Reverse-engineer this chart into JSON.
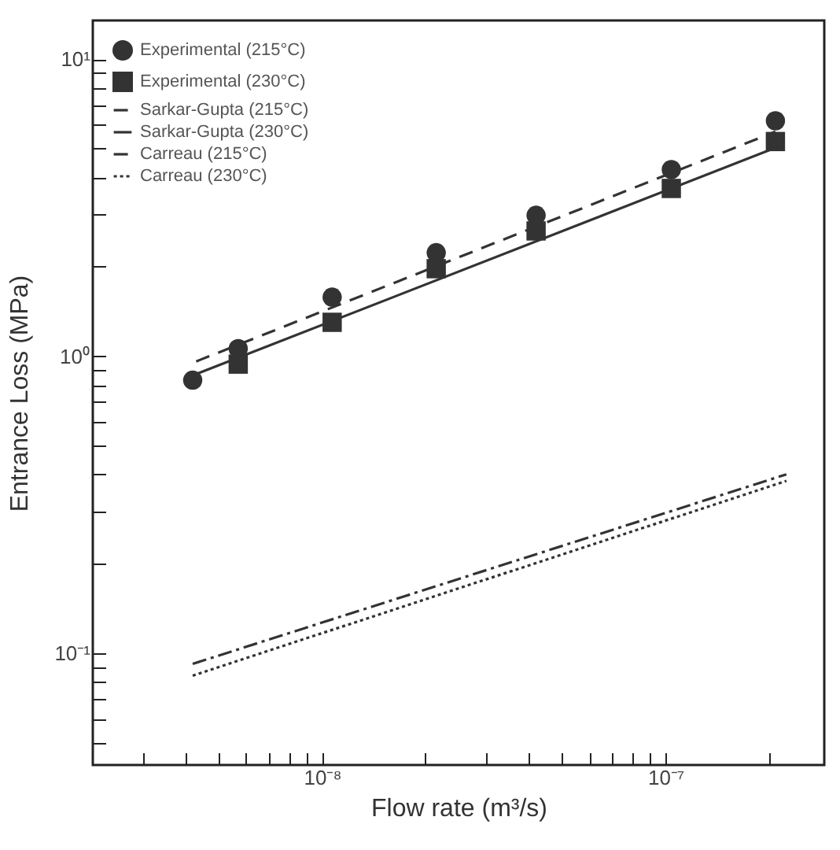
{
  "chart_data": {
    "type": "scatter",
    "xlabel": "Flow rate (m³/s)",
    "ylabel": "Entrance Loss (MPa)",
    "log": "xy",
    "grid": false,
    "legend": "top left",
    "xlim": [
      2.15e-09,
      2.9e-07
    ],
    "ylim": [
      0.042,
      13.5
    ],
    "xticks": [
      {
        "value": 3e-09,
        "label": null
      },
      {
        "value": 4e-09,
        "label": null
      },
      {
        "value": 5e-09,
        "label": null
      },
      {
        "value": 6e-09,
        "label": null
      },
      {
        "value": 7e-09,
        "label": null
      },
      {
        "value": 8e-09,
        "label": null
      },
      {
        "value": 9e-09,
        "label": null
      },
      {
        "value": 1e-08,
        "label": "10⁻⁸"
      },
      {
        "value": 2e-08,
        "label": null
      },
      {
        "value": 3e-08,
        "label": null
      },
      {
        "value": 4e-08,
        "label": null
      },
      {
        "value": 5e-08,
        "label": null
      },
      {
        "value": 6e-08,
        "label": null
      },
      {
        "value": 7e-08,
        "label": null
      },
      {
        "value": 8e-08,
        "label": null
      },
      {
        "value": 9e-08,
        "label": null
      },
      {
        "value": 1e-07,
        "label": "10⁻⁷"
      },
      {
        "value": 2e-07,
        "label": null
      }
    ],
    "yticks": [
      {
        "value": 0.05,
        "label": null
      },
      {
        "value": 0.06,
        "label": null
      },
      {
        "value": 0.07,
        "label": null
      },
      {
        "value": 0.08,
        "label": null
      },
      {
        "value": 0.09,
        "label": null
      },
      {
        "value": 0.1,
        "label": "10⁻¹"
      },
      {
        "value": 0.2,
        "label": null
      },
      {
        "value": 0.3,
        "label": null
      },
      {
        "value": 0.4,
        "label": null
      },
      {
        "value": 0.5,
        "label": null
      },
      {
        "value": 0.6,
        "label": null
      },
      {
        "value": 0.7,
        "label": null
      },
      {
        "value": 0.8,
        "label": null
      },
      {
        "value": 0.9,
        "label": null
      },
      {
        "value": 1,
        "label": "10⁰"
      },
      {
        "value": 2,
        "label": null
      },
      {
        "value": 3,
        "label": null
      },
      {
        "value": 4,
        "label": null
      },
      {
        "value": 5,
        "label": null
      },
      {
        "value": 6,
        "label": null
      },
      {
        "value": 7,
        "label": null
      },
      {
        "value": 8,
        "label": null
      },
      {
        "value": 9,
        "label": null
      },
      {
        "value": 10,
        "label": "10¹"
      }
    ],
    "x": [
      4.2e-09,
      5.7e-09,
      1.07e-08,
      2.15e-08,
      4.2e-08,
      1.04e-07,
      2.09e-07
    ],
    "series": [
      {
        "name": "Experimental (215°C)",
        "color": "#333333",
        "marker": "circle",
        "values": [
          0.83,
          1.06,
          1.58,
          2.23,
          2.98,
          4.25,
          6.2
        ]
      },
      {
        "name": "Experimental (230°C)",
        "color": "#333333",
        "marker": "square",
        "values": [
          null,
          0.94,
          1.3,
          1.97,
          2.64,
          3.67,
          5.28
        ]
      },
      {
        "name": "Sarkar-Gupta (215°C)",
        "color": "#333333",
        "type": "line",
        "line_style": "dashed",
        "x": [
          4.3e-09,
          2.09e-07
        ],
        "values": [
          0.96,
          5.7
        ]
      },
      {
        "name": "Sarkar-Gupta (230°C)",
        "color": "#333333",
        "type": "line",
        "line_style": "solid",
        "x": [
          4.3e-09,
          2.09e-07
        ],
        "values": [
          0.87,
          5.03
        ]
      },
      {
        "name": "Carreau (215°C)",
        "color": "#333333",
        "type": "line",
        "line_style": "dashdot",
        "x": [
          4.2e-09,
          2.25e-07
        ],
        "values": [
          0.092,
          0.4
        ]
      },
      {
        "name": "Carreau (230°C)",
        "color": "#333333",
        "type": "line",
        "line_style": "dotted",
        "x": [
          4.2e-09,
          2.25e-07
        ],
        "values": [
          0.084,
          0.38
        ]
      }
    ]
  }
}
